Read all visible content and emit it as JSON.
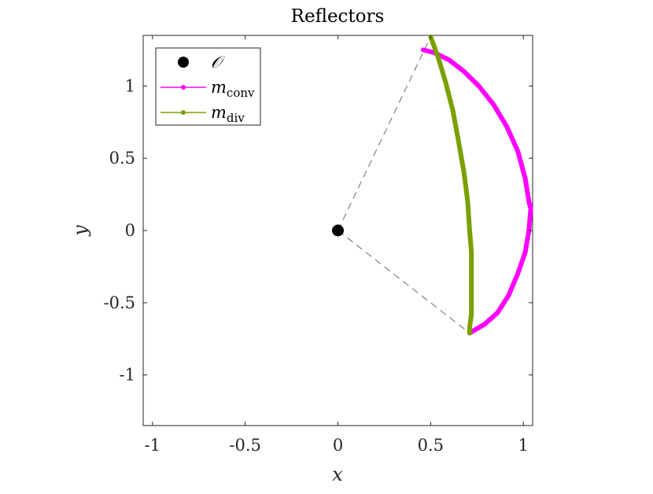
{
  "chart_data": {
    "type": "line",
    "title": "Reflectors",
    "xlabel": "x",
    "ylabel": "y",
    "xlim": [
      -1.05,
      1.05
    ],
    "ylim": [
      -1.35,
      1.35
    ],
    "x_ticks": [
      -1,
      -0.5,
      0,
      0.5,
      1
    ],
    "x_tick_labels": [
      "-1",
      "-0.5",
      "0",
      "0.5",
      "1"
    ],
    "y_ticks": [
      -1,
      -0.5,
      0,
      0.5,
      1
    ],
    "y_tick_labels": [
      "-1",
      "-0.5",
      "0",
      "0.5",
      "1"
    ],
    "grid": false,
    "legend_position": "top-left",
    "origin": {
      "label": "𝒪",
      "x": 0,
      "y": 0,
      "color": "#000000"
    },
    "guide_lines": [
      {
        "from": [
          0,
          0
        ],
        "to": [
          0.5,
          1.34
        ],
        "style": "dashed",
        "color": "#808080"
      },
      {
        "from": [
          0,
          0
        ],
        "to": [
          0.71,
          -0.71
        ],
        "style": "dashed",
        "color": "#808080"
      }
    ],
    "series": [
      {
        "name": "m",
        "name_subscript": "conv",
        "color": "#ff00ff",
        "x": [
          0.46,
          0.52,
          0.6,
          0.68,
          0.76,
          0.84,
          0.91,
          0.97,
          1.01,
          1.03,
          1.04,
          1.03,
          1.01,
          0.97,
          0.92,
          0.86,
          0.79,
          0.71
        ],
        "y": [
          1.25,
          1.23,
          1.18,
          1.1,
          1.0,
          0.87,
          0.72,
          0.55,
          0.36,
          0.2,
          0.15,
          0.0,
          -0.15,
          -0.3,
          -0.45,
          -0.57,
          -0.65,
          -0.71
        ]
      },
      {
        "name": "m",
        "name_subscript": "div",
        "color": "#7aa000",
        "x": [
          0.5,
          0.54,
          0.58,
          0.62,
          0.65,
          0.68,
          0.7,
          0.71,
          0.72,
          0.72,
          0.72,
          0.72,
          0.71,
          0.71
        ],
        "y": [
          1.34,
          1.2,
          1.03,
          0.83,
          0.62,
          0.4,
          0.2,
          0.0,
          -0.15,
          -0.3,
          -0.45,
          -0.58,
          -0.67,
          -0.71
        ]
      }
    ]
  }
}
